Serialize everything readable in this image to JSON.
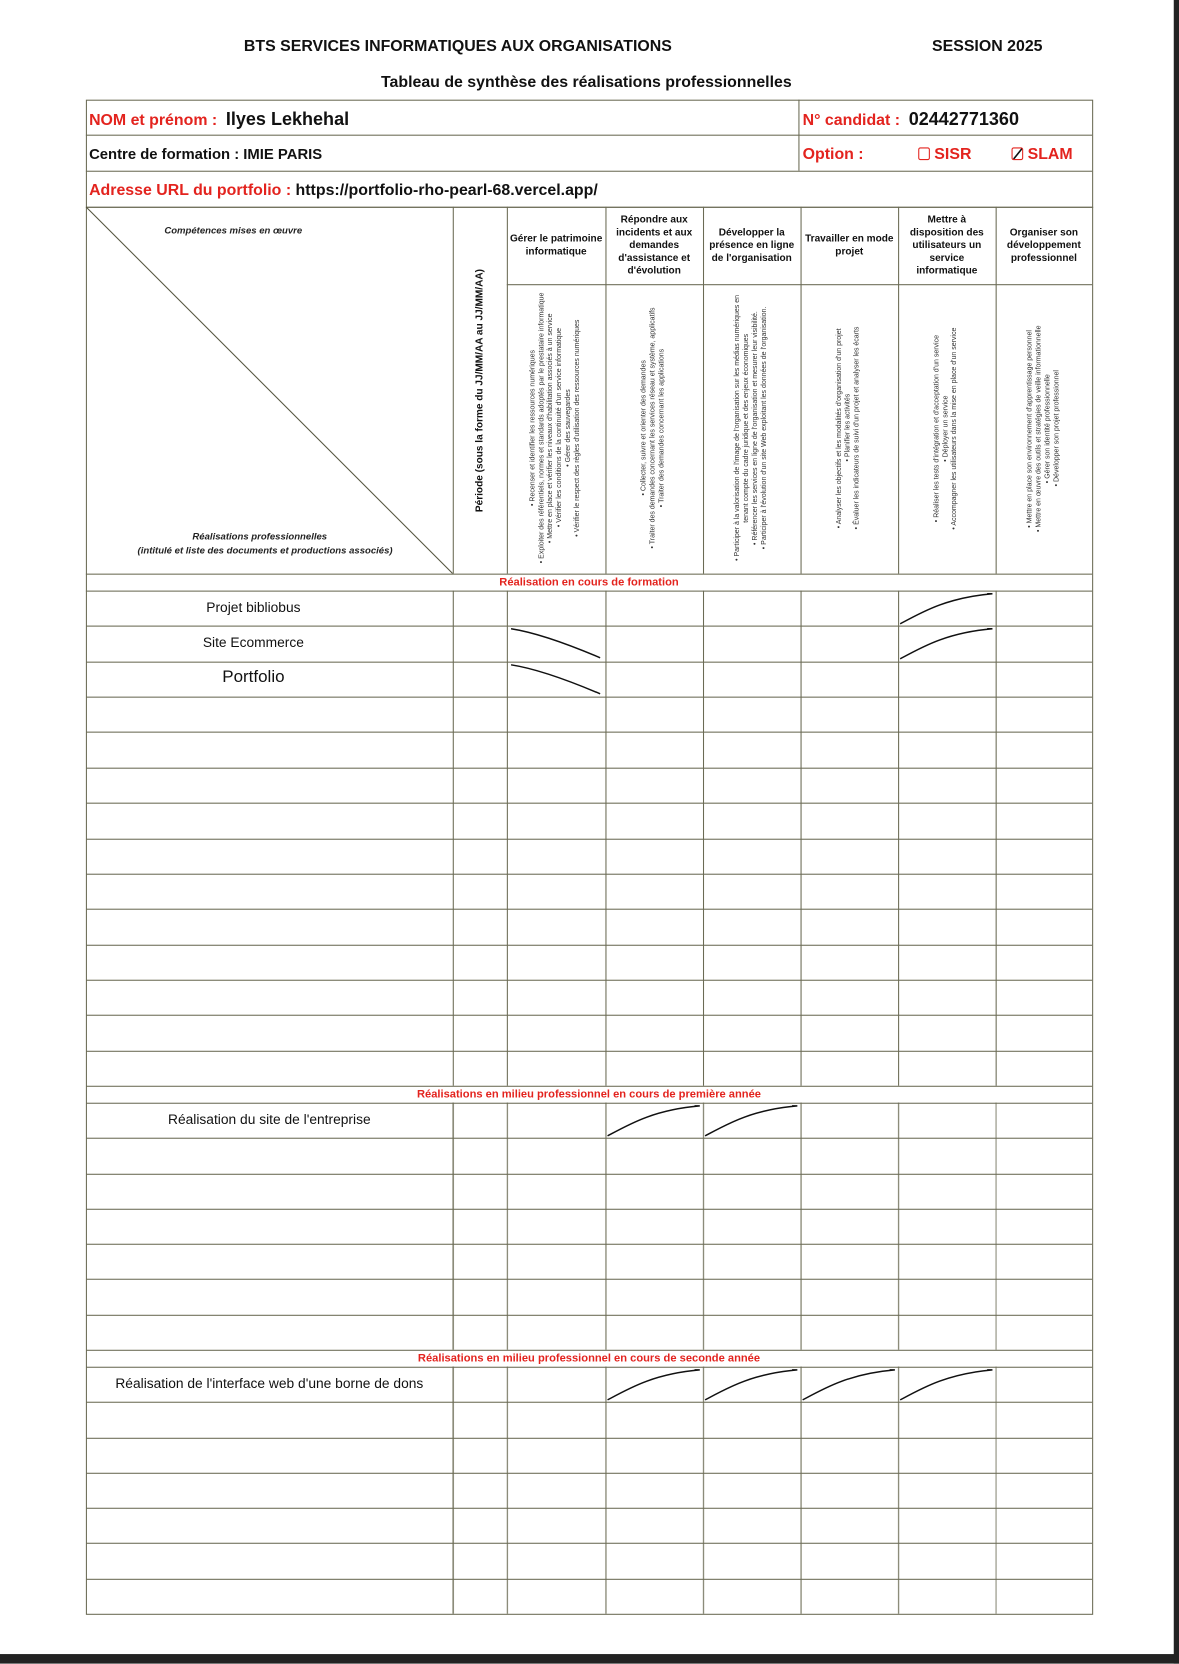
{
  "header": {
    "title": "BTS SERVICES INFORMATIQUES AUX ORGANISATIONS",
    "session": "SESSION 2025",
    "subtitle": "Tableau de synthèse des réalisations professionnelles"
  },
  "candidate": {
    "name_label": "NOM et prénom :",
    "name_value": "Ilyes Lekhehal",
    "number_label": "N° candidat :",
    "number_value": "02442771360",
    "center_label": "Centre de formation : IMIE PARIS",
    "option_label": "Option :",
    "options": [
      {
        "label": "SISR",
        "checked": false
      },
      {
        "label": "SLAM",
        "checked": true
      }
    ],
    "url_label": "Adresse URL du portfolio :",
    "url_value": "https://portfolio-rho-pearl-68.vercel.app/"
  },
  "table": {
    "diag_top": "Compétences mises en œuvre",
    "diag_bottom_1": "Réalisations professionnelles",
    "diag_bottom_2": "(intitulé et liste des documents et productions associés)",
    "period_label": "Période (sous la forme du JJ/MM/AA au JJ/MM/AA)",
    "competences": [
      {
        "title": "Gérer le patrimoine informatique",
        "items": [
          "• Recenser et identifier les ressources numériques",
          "• Exploiter des référentiels, normes et standards adoptés par le prestataire informatique",
          "• Mettre en place et vérifier les niveaux d'habilitation associés à un service",
          "• Vérifier les conditions de la continuité d'un service informatique",
          "• Gérer des sauvegardes",
          "• Vérifier le respect des règles d'utilisation des ressources numériques"
        ]
      },
      {
        "title": "Répondre aux incidents et aux demandes d'assistance et d'évolution",
        "items": [
          "• Collecter, suivre et orienter des demandes",
          "• Traiter des demandes concernant les services réseau et système, applicatifs",
          "• Traiter des demandes concernant les applications"
        ]
      },
      {
        "title": "Développer la présence en ligne de l'organisation",
        "items": [
          "• Participer à la valorisation de l'image de l'organisation sur les médias numériques en tenant compte du cadre juridique et des enjeux économiques",
          "• Référencer les services en ligne de l'organisation et mesurer leur visibilité.",
          "• Participer à l'évolution d'un site Web exploitant les données de l'organisation."
        ]
      },
      {
        "title": "Travailler en mode projet",
        "items": [
          "• Analyser les objectifs et les modalités d'organisation d'un projet",
          "• Planifier les activités",
          "• Évaluer les indicateurs de suivi d'un projet et analyser les écarts"
        ]
      },
      {
        "title": "Mettre à disposition des utilisateurs un service informatique",
        "items": [
          "• Réaliser les tests d'intégration et d'acceptation d'un service",
          "• Déployer un service",
          "• Accompagner les utilisateurs dans la mise en place d'un service"
        ]
      },
      {
        "title": "Organiser son développement professionnel",
        "items": [
          "• Mettre en place son environnement d'apprentissage personnel",
          "• Mettre en œuvre des outils et stratégies de veille informationnelle",
          "• Gérer son identité professionnelle",
          "• Développer son projet professionnel"
        ]
      }
    ],
    "sections": [
      {
        "label": "Réalisation en cours de formation",
        "row_count": 14,
        "rows": [
          {
            "title": "Projet bibliobus",
            "checks": [
              4,
              6
            ]
          },
          {
            "title": "Site Ecommerce",
            "checks": [
              0,
              4
            ]
          },
          {
            "title": "Portfolio",
            "checks": [
              0,
              6
            ],
            "large": true
          }
        ]
      },
      {
        "label": "Réalisations en milieu professionnel en cours de première année",
        "row_count": 7,
        "rows": [
          {
            "title": "Réalisation du site de l'entreprise",
            "checks": [
              1,
              2
            ]
          }
        ]
      },
      {
        "label": "Réalisations en milieu professionnel en cours de seconde année",
        "row_count": 7,
        "rows": [
          {
            "title": "Réalisation de l'interface web d'une borne de dons",
            "checks": [
              1,
              2,
              3,
              4
            ]
          }
        ]
      }
    ]
  }
}
